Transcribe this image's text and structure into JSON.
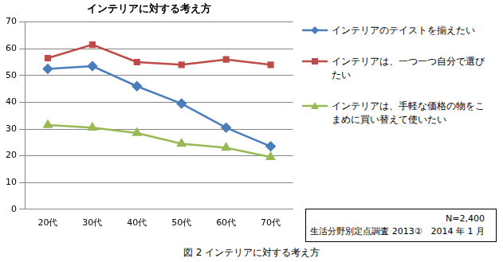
{
  "chart_data": {
    "type": "line",
    "title": "インテリアに対する考え方",
    "categories": [
      "20代",
      "30代",
      "40代",
      "50代",
      "60代",
      "70代"
    ],
    "series": [
      {
        "name": "インテリアのテイストを揃えたい",
        "color": "#4a7ebb",
        "marker": "diamond",
        "values": [
          52.5,
          53.5,
          46,
          39.5,
          30.5,
          23.5
        ]
      },
      {
        "name": "インテリアは、一つ一つ自分で選びたい",
        "color": "#be4b48",
        "marker": "square",
        "values": [
          56.5,
          61.5,
          55,
          54,
          56,
          54
        ]
      },
      {
        "name": "インテリアは、手軽な価格の物をこまめに買い替えて使いたい",
        "color": "#98b954",
        "marker": "triangle",
        "values": [
          31.5,
          30.5,
          28.5,
          24.5,
          23,
          19.5
        ]
      }
    ],
    "ylim": [
      0,
      70
    ],
    "yticks": [
      0,
      10,
      20,
      30,
      40,
      50,
      60,
      70
    ],
    "grid": true,
    "legend": "right",
    "annotations": [
      "N=2,400",
      "生活分野別定点調査 2013②　2014 年 1 月"
    ],
    "caption": "図 2 インテリアに対する考え方"
  }
}
